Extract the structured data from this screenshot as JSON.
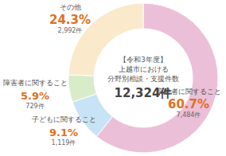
{
  "chart_data": {
    "type": "donut",
    "title": [
      "【令和3年度】",
      "上越市における",
      "分野別相談・支援件数"
    ],
    "total": 12324,
    "total_label": "12,324件",
    "categories": [
      "高齢者に関すること",
      "子どもに関すること",
      "障害者に関すること",
      "その他"
    ],
    "values": [
      60.7,
      9.1,
      5.9,
      24.3
    ],
    "value_labels": [
      "60.7%",
      "9.1%",
      "5.9%",
      "24.3%"
    ],
    "counts": [
      7484,
      1119,
      729,
      2992
    ],
    "count_labels": [
      "7,484件",
      "1,119件",
      "729件",
      "2,992件"
    ],
    "colors": [
      "#ecbfd8",
      "#c9e3f6",
      "#d8ecca",
      "#faeacb"
    ],
    "data_labels": true
  }
}
